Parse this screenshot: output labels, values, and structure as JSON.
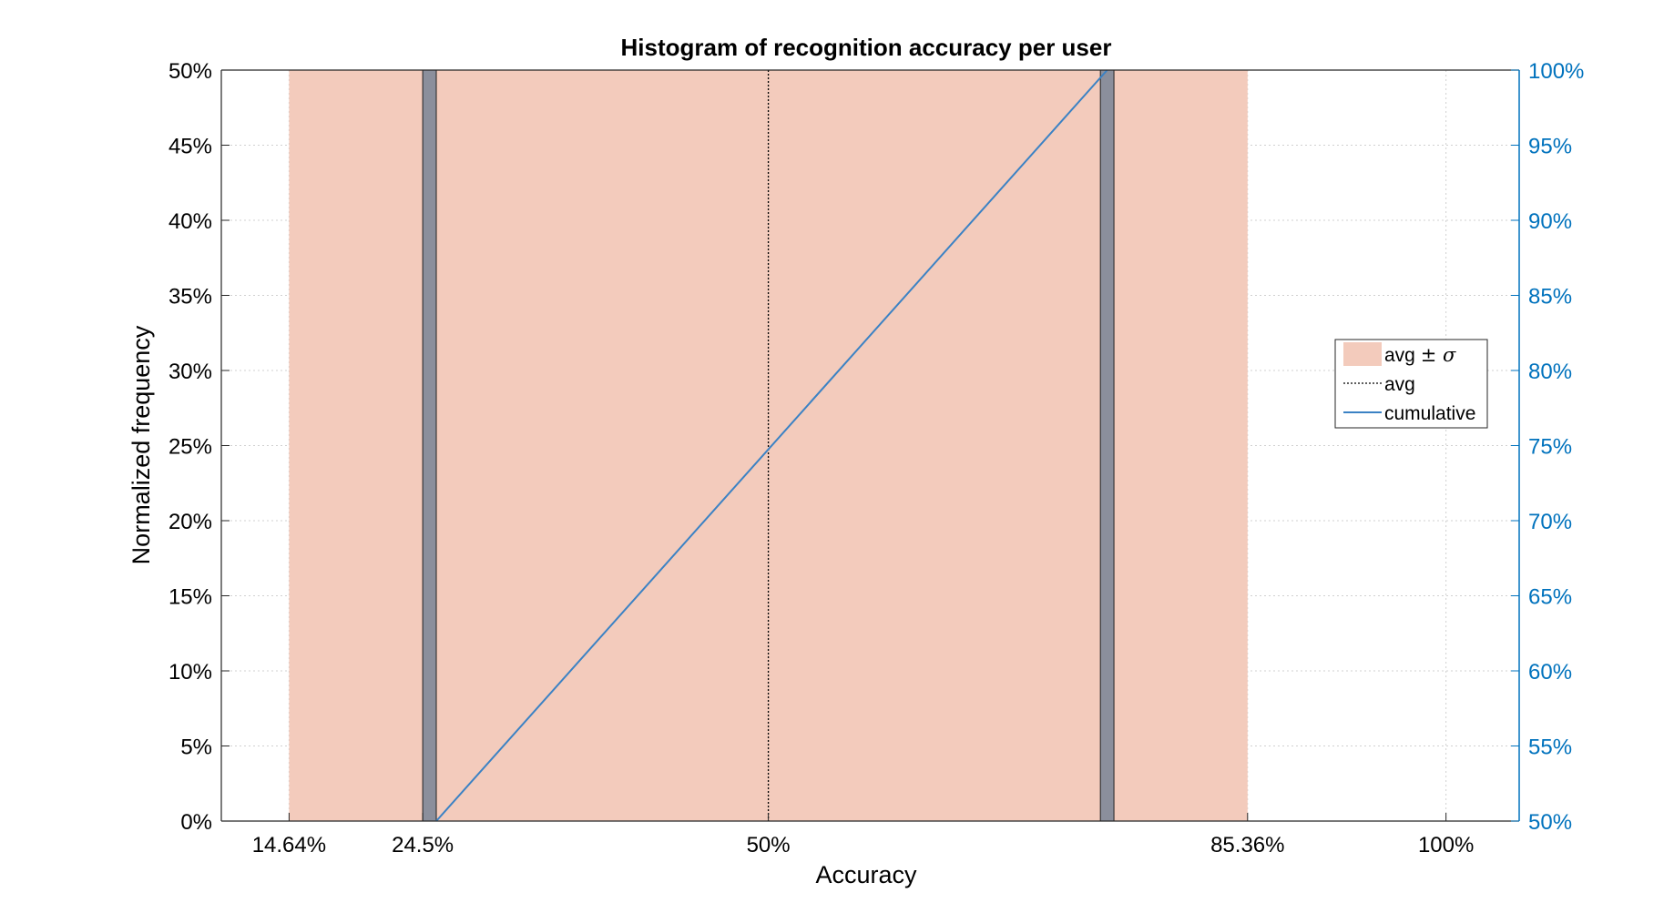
{
  "colors": {
    "band": "#f3cbbc",
    "bar": "#8b8f9c",
    "avg_line": "#000000",
    "cumulative": "#3b82c4",
    "right_axis": "#0072BD",
    "grid": "#d0d0d0"
  },
  "chart_data": {
    "type": "bar",
    "title": "Histogram of recognition accuracy per user",
    "xlabel": "Accuracy",
    "ylabel": "Normalized frequency",
    "xlim": [
      0.0964,
      1.054
    ],
    "ylim": [
      0,
      0.5
    ],
    "y2lim": [
      0.5,
      1.0
    ],
    "grid": true,
    "legend_position": "right",
    "x_ticks": [
      {
        "value": 0.1464,
        "label": "14.64%"
      },
      {
        "value": 0.245,
        "label": "24.5%"
      },
      {
        "value": 0.5,
        "label": "50%"
      },
      {
        "value": 0.8536,
        "label": "85.36%"
      },
      {
        "value": 1.0,
        "label": "100%"
      }
    ],
    "y_ticks": [
      {
        "value": 0.0,
        "label": "0%"
      },
      {
        "value": 0.05,
        "label": "5%"
      },
      {
        "value": 0.1,
        "label": "10%"
      },
      {
        "value": 0.15,
        "label": "15%"
      },
      {
        "value": 0.2,
        "label": "20%"
      },
      {
        "value": 0.25,
        "label": "25%"
      },
      {
        "value": 0.3,
        "label": "30%"
      },
      {
        "value": 0.35,
        "label": "35%"
      },
      {
        "value": 0.4,
        "label": "40%"
      },
      {
        "value": 0.45,
        "label": "45%"
      },
      {
        "value": 0.5,
        "label": "50%"
      }
    ],
    "y2_ticks": [
      {
        "value": 0.5,
        "label": "50%"
      },
      {
        "value": 0.55,
        "label": "55%"
      },
      {
        "value": 0.6,
        "label": "60%"
      },
      {
        "value": 0.65,
        "label": "65%"
      },
      {
        "value": 0.7,
        "label": "70%"
      },
      {
        "value": 0.75,
        "label": "75%"
      },
      {
        "value": 0.8,
        "label": "80%"
      },
      {
        "value": 0.85,
        "label": "85%"
      },
      {
        "value": 0.9,
        "label": "90%"
      },
      {
        "value": 0.95,
        "label": "95%"
      },
      {
        "value": 1.0,
        "label": "100%"
      }
    ],
    "band": {
      "name": "avg ± σ",
      "from": 0.1464,
      "to": 0.8536
    },
    "bars": [
      {
        "x_start": 0.245,
        "x_end": 0.255,
        "value": 0.5
      },
      {
        "x_start": 0.745,
        "x_end": 0.755,
        "value": 0.5
      }
    ],
    "average": {
      "name": "avg",
      "value": 0.5
    },
    "cumulative": {
      "name": "cumulative",
      "x": [
        0.255,
        0.75
      ],
      "y": [
        0.5,
        1.0
      ]
    },
    "legend": [
      {
        "key": "band",
        "label_main": "avg ",
        "label_symbol": "± σ"
      },
      {
        "key": "average",
        "label_main": "avg",
        "label_symbol": ""
      },
      {
        "key": "cumulative",
        "label_main": "cumulative",
        "label_symbol": ""
      }
    ]
  }
}
